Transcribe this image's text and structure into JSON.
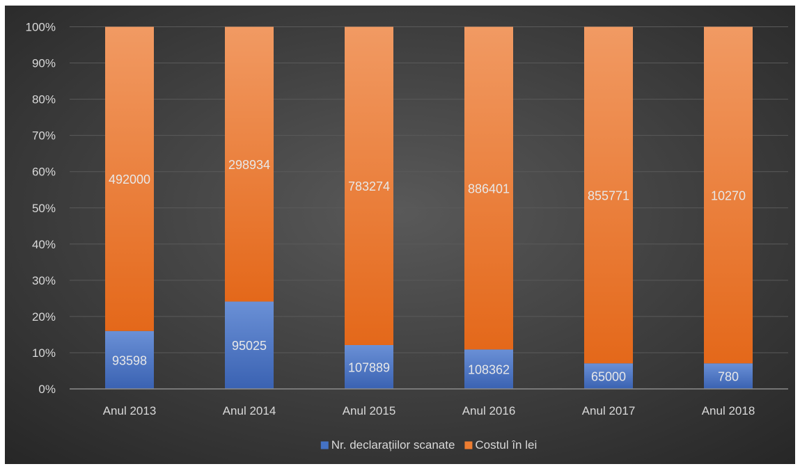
{
  "chart_data": {
    "type": "bar",
    "stacked": "percent",
    "categories": [
      "Anul 2013",
      "Anul 2014",
      "Anul 2015",
      "Anul 2016",
      "Anul 2017",
      "Anul 2018"
    ],
    "series": [
      {
        "name": "Nr. declarațiilor scanate",
        "values": [
          93598,
          95025,
          107889,
          108362,
          65000,
          780
        ],
        "color": "#4472c4"
      },
      {
        "name": "Costul în lei",
        "values": [
          492000,
          298934,
          783274,
          886401,
          855771,
          10270
        ],
        "color": "#ed7d31"
      }
    ],
    "y_ticks": [
      "0%",
      "10%",
      "20%",
      "30%",
      "40%",
      "50%",
      "60%",
      "70%",
      "80%",
      "90%",
      "100%"
    ],
    "ylim": [
      0,
      100
    ],
    "title": "",
    "xlabel": "",
    "ylabel": "",
    "grid": true,
    "legend_position": "bottom",
    "background_color": "#333333",
    "gridline_color": "#5a5a5a",
    "text_color": "#d9d9d9"
  }
}
